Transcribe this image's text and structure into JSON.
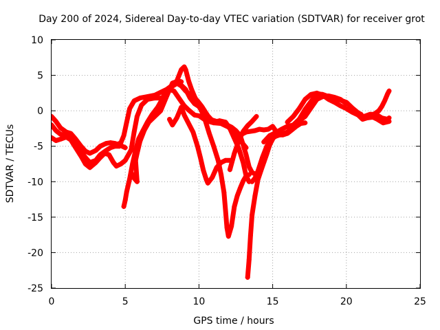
{
  "chart_data": {
    "type": "scatter",
    "title": "Day 200 of 2024, Sidereal Day-to-day VTEC variation (SDTVAR) for receiver grot",
    "xlabel": "GPS time / hours",
    "ylabel": "SDTVAR / TECUs",
    "xlim": [
      0,
      25
    ],
    "ylim": [
      -25,
      10
    ],
    "x_ticks": [
      0,
      5,
      10,
      15,
      20,
      25
    ],
    "x_tick_labels": [
      "0",
      "5",
      "10",
      "15",
      "20",
      "25"
    ],
    "y_ticks": [
      10,
      5,
      0,
      -5,
      -10,
      -15,
      -20,
      -25
    ],
    "y_tick_labels": [
      "10",
      "5",
      "0",
      "-5",
      "-10",
      "-15",
      "-20",
      "-25"
    ],
    "grid": true,
    "marker": "plus",
    "color": "#ff0000",
    "series": [
      {
        "points": [
          [
            0.0,
            -0.8
          ],
          [
            0.3,
            -1.5
          ],
          [
            0.6,
            -2.4
          ],
          [
            1.0,
            -3.0
          ],
          [
            1.3,
            -3.2
          ],
          [
            1.6,
            -3.9
          ],
          [
            2.0,
            -5.0
          ],
          [
            2.3,
            -5.7
          ],
          [
            2.6,
            -6.0
          ],
          [
            3.0,
            -5.6
          ],
          [
            3.3,
            -5.0
          ],
          [
            3.7,
            -4.6
          ],
          [
            4.0,
            -4.5
          ],
          [
            4.3,
            -4.6
          ],
          [
            4.6,
            -4.8
          ],
          [
            5.0,
            -5.2
          ]
        ]
      },
      {
        "points": [
          [
            0.0,
            -2.0
          ],
          [
            0.3,
            -2.8
          ],
          [
            0.6,
            -3.3
          ],
          [
            1.0,
            -3.5
          ],
          [
            1.3,
            -3.6
          ],
          [
            1.6,
            -4.4
          ],
          [
            2.0,
            -5.8
          ],
          [
            2.3,
            -6.6
          ],
          [
            2.6,
            -7.3
          ],
          [
            3.0,
            -7.0
          ],
          [
            3.3,
            -6.2
          ],
          [
            3.7,
            -5.6
          ],
          [
            4.0,
            -5.2
          ],
          [
            4.3,
            -5.0
          ],
          [
            4.6,
            -5.0
          ]
        ]
      },
      {
        "points": [
          [
            0.0,
            -3.8
          ],
          [
            0.3,
            -4.2
          ],
          [
            0.6,
            -4.0
          ],
          [
            1.0,
            -3.7
          ],
          [
            1.3,
            -4.1
          ],
          [
            1.6,
            -5.1
          ],
          [
            2.0,
            -6.4
          ],
          [
            2.3,
            -7.5
          ],
          [
            2.6,
            -8.0
          ],
          [
            3.0,
            -7.3
          ],
          [
            3.3,
            -6.6
          ],
          [
            3.6,
            -6.0
          ],
          [
            3.9,
            -6.2
          ],
          [
            4.2,
            -7.3
          ],
          [
            4.4,
            -7.8
          ],
          [
            4.7,
            -7.5
          ],
          [
            5.0,
            -7.0
          ],
          [
            5.4,
            -5.5
          ],
          [
            5.6,
            -3.0
          ],
          [
            5.8,
            -0.8
          ],
          [
            6.1,
            0.8
          ],
          [
            6.5,
            1.6
          ],
          [
            7.0,
            1.8
          ],
          [
            7.5,
            1.8
          ],
          [
            8.0,
            3.2
          ],
          [
            8.3,
            3.6
          ],
          [
            8.6,
            4.0
          ],
          [
            8.8,
            3.6
          ],
          [
            9.1,
            3.0
          ],
          [
            9.4,
            1.8
          ],
          [
            9.7,
            1.0
          ],
          [
            10.0,
            0.6
          ],
          [
            10.3,
            -0.4
          ],
          [
            10.6,
            -1.1
          ],
          [
            10.9,
            -1.3
          ],
          [
            11.2,
            -1.5
          ],
          [
            11.5,
            -1.7
          ],
          [
            11.9,
            -2.0
          ],
          [
            12.2,
            -2.3
          ],
          [
            12.5,
            -2.8
          ],
          [
            12.8,
            -3.5
          ],
          [
            13.0,
            -4.8
          ],
          [
            13.2,
            -6.2
          ],
          [
            13.4,
            -7.9
          ],
          [
            13.6,
            -8.7
          ],
          [
            13.9,
            -9.0
          ]
        ]
      },
      {
        "points": [
          [
            4.4,
            -4.8
          ],
          [
            4.7,
            -4.5
          ],
          [
            4.9,
            -3.5
          ],
          [
            5.1,
            -1.6
          ],
          [
            5.3,
            0.3
          ],
          [
            5.6,
            1.4
          ],
          [
            6.0,
            1.8
          ],
          [
            6.5,
            2.0
          ],
          [
            7.0,
            2.2
          ],
          [
            7.4,
            2.6
          ],
          [
            7.8,
            3.0
          ],
          [
            8.2,
            3.6
          ],
          [
            8.5,
            3.9
          ],
          [
            8.8,
            3.5
          ],
          [
            9.1,
            2.8
          ],
          [
            9.5,
            2.1
          ],
          [
            9.9,
            1.4
          ],
          [
            10.2,
            0.6
          ],
          [
            10.6,
            -0.7
          ],
          [
            11.0,
            -1.6
          ],
          [
            11.4,
            -1.4
          ],
          [
            11.8,
            -1.6
          ],
          [
            12.1,
            -2.5
          ],
          [
            12.4,
            -3.9
          ],
          [
            12.7,
            -5.3
          ],
          [
            13.0,
            -7.3
          ],
          [
            13.2,
            -9.2
          ],
          [
            13.4,
            -10.0
          ]
        ]
      },
      {
        "points": [
          [
            4.9,
            -13.5
          ],
          [
            5.0,
            -12.6
          ],
          [
            5.1,
            -11.4
          ],
          [
            5.3,
            -9.6
          ],
          [
            5.5,
            -7.4
          ],
          [
            5.7,
            -5.6
          ],
          [
            5.9,
            -4.0
          ],
          [
            6.2,
            -2.8
          ],
          [
            6.5,
            -1.6
          ],
          [
            6.8,
            -0.6
          ],
          [
            7.2,
            0.5
          ],
          [
            7.5,
            1.6
          ],
          [
            7.8,
            2.8
          ],
          [
            8.0,
            3.0
          ],
          [
            8.3,
            2.8
          ],
          [
            8.7,
            1.6
          ],
          [
            9.0,
            0.7
          ],
          [
            9.3,
            0.1
          ],
          [
            9.7,
            -0.6
          ],
          [
            10.0,
            -0.7
          ],
          [
            10.5,
            -1.4
          ],
          [
            11.0,
            -1.7
          ],
          [
            11.5,
            -1.8
          ],
          [
            12.0,
            -2.3
          ],
          [
            12.4,
            -3.1
          ],
          [
            12.8,
            -4.2
          ],
          [
            13.2,
            -5.2
          ]
        ]
      },
      {
        "points": [
          [
            5.4,
            -8.7
          ],
          [
            5.6,
            -9.5
          ],
          [
            5.8,
            -10.0
          ],
          [
            5.7,
            -7.0
          ],
          [
            5.8,
            -6.0
          ],
          [
            6.0,
            -4.3
          ],
          [
            6.3,
            -2.7
          ],
          [
            6.6,
            -1.6
          ],
          [
            7.0,
            -0.8
          ],
          [
            7.4,
            0.0
          ],
          [
            7.8,
            2.0
          ],
          [
            8.2,
            3.9
          ],
          [
            8.6,
            4.2
          ],
          [
            8.8,
            4.1
          ]
        ]
      },
      {
        "points": [
          [
            8.0,
            -1.2
          ],
          [
            8.2,
            -2.0
          ],
          [
            8.5,
            -1.0
          ],
          [
            8.8,
            0.5
          ],
          [
            9.0,
            -0.6
          ],
          [
            9.3,
            -1.8
          ],
          [
            9.6,
            -3.0
          ],
          [
            9.9,
            -5.0
          ],
          [
            10.1,
            -6.6
          ],
          [
            10.3,
            -8.4
          ],
          [
            10.5,
            -9.7
          ],
          [
            10.6,
            -10.2
          ],
          [
            10.9,
            -9.4
          ],
          [
            11.2,
            -8.0
          ],
          [
            11.5,
            -7.3
          ],
          [
            11.8,
            -7.0
          ],
          [
            12.1,
            -7.0
          ]
        ]
      },
      {
        "points": [
          [
            8.5,
            4.2
          ],
          [
            8.8,
            5.8
          ],
          [
            9.0,
            6.2
          ],
          [
            9.1,
            5.8
          ],
          [
            9.3,
            4.2
          ],
          [
            9.5,
            3.0
          ],
          [
            9.7,
            2.0
          ],
          [
            9.9,
            1.2
          ],
          [
            10.1,
            0.4
          ],
          [
            10.4,
            -1.2
          ],
          [
            10.7,
            -3.2
          ],
          [
            11.0,
            -5.0
          ],
          [
            11.3,
            -7.0
          ],
          [
            11.5,
            -9.0
          ],
          [
            11.7,
            -11.5
          ],
          [
            11.8,
            -14.0
          ],
          [
            11.9,
            -16.5
          ],
          [
            12.0,
            -17.7
          ],
          [
            12.2,
            -16.3
          ],
          [
            12.4,
            -13.5
          ],
          [
            12.6,
            -12.0
          ],
          [
            12.8,
            -10.9
          ],
          [
            13.0,
            -9.9
          ],
          [
            13.2,
            -9.2
          ],
          [
            13.4,
            -9.0
          ]
        ]
      },
      {
        "points": [
          [
            13.3,
            -23.5
          ],
          [
            13.4,
            -21.0
          ],
          [
            13.5,
            -17.6
          ],
          [
            13.6,
            -14.7
          ],
          [
            13.8,
            -12.0
          ],
          [
            14.0,
            -9.7
          ],
          [
            14.2,
            -8.5
          ],
          [
            14.4,
            -7.3
          ],
          [
            14.6,
            -6.1
          ],
          [
            14.8,
            -4.8
          ],
          [
            15.1,
            -3.6
          ],
          [
            15.4,
            -3.4
          ],
          [
            15.7,
            -3.4
          ],
          [
            16.0,
            -3.2
          ],
          [
            16.3,
            -2.7
          ],
          [
            16.6,
            -2.2
          ],
          [
            16.9,
            -1.8
          ],
          [
            17.2,
            -1.7
          ]
        ]
      },
      {
        "points": [
          [
            12.1,
            -8.3
          ],
          [
            12.4,
            -6.0
          ],
          [
            12.7,
            -4.2
          ],
          [
            13.0,
            -2.9
          ],
          [
            13.3,
            -2.1
          ],
          [
            13.6,
            -1.5
          ],
          [
            13.9,
            -0.8
          ]
        ]
      },
      {
        "points": [
          [
            12.6,
            -4.5
          ],
          [
            12.9,
            -3.3
          ],
          [
            13.2,
            -3.0
          ],
          [
            13.5,
            -2.9
          ],
          [
            13.8,
            -2.8
          ],
          [
            14.1,
            -2.6
          ],
          [
            14.4,
            -2.7
          ],
          [
            14.7,
            -2.6
          ],
          [
            15.0,
            -2.2
          ],
          [
            15.3,
            -3.1
          ]
        ]
      },
      {
        "points": [
          [
            13.6,
            -10.0
          ],
          [
            13.8,
            -9.5
          ],
          [
            14.0,
            -8.5
          ],
          [
            14.3,
            -6.6
          ],
          [
            14.6,
            -5.0
          ],
          [
            14.9,
            -4.0
          ],
          [
            15.2,
            -3.6
          ],
          [
            15.6,
            -3.3
          ],
          [
            16.0,
            -3.0
          ],
          [
            16.4,
            -2.3
          ],
          [
            16.8,
            -1.4
          ],
          [
            17.2,
            -0.8
          ],
          [
            17.6,
            0.4
          ],
          [
            18.0,
            1.6
          ],
          [
            18.4,
            2.0
          ],
          [
            18.8,
            2.1
          ],
          [
            19.2,
            1.9
          ],
          [
            19.6,
            1.6
          ],
          [
            20.0,
            1.0
          ]
        ]
      },
      {
        "points": [
          [
            14.4,
            -4.4
          ],
          [
            14.8,
            -3.5
          ],
          [
            15.2,
            -3.1
          ],
          [
            15.6,
            -2.6
          ],
          [
            16.0,
            -2.2
          ],
          [
            16.4,
            -2.0
          ],
          [
            16.8,
            -1.2
          ],
          [
            17.2,
            0.2
          ],
          [
            17.6,
            1.3
          ],
          [
            18.0,
            2.4
          ],
          [
            18.4,
            2.3
          ],
          [
            18.8,
            2.0
          ],
          [
            19.2,
            1.8
          ],
          [
            19.6,
            1.5
          ],
          [
            20.0,
            1.2
          ],
          [
            20.4,
            0.4
          ],
          [
            20.8,
            -0.3
          ],
          [
            21.0,
            -0.5
          ]
        ]
      },
      {
        "points": [
          [
            16.0,
            -1.6
          ],
          [
            16.4,
            -0.8
          ],
          [
            16.8,
            0.3
          ],
          [
            17.2,
            1.6
          ],
          [
            17.6,
            2.3
          ],
          [
            18.0,
            2.5
          ],
          [
            18.4,
            2.2
          ],
          [
            18.8,
            1.6
          ],
          [
            19.2,
            1.2
          ],
          [
            19.6,
            0.7
          ],
          [
            20.0,
            0.3
          ],
          [
            20.4,
            -0.2
          ],
          [
            20.8,
            -0.6
          ],
          [
            21.1,
            -1.2
          ],
          [
            21.4,
            -1.0
          ],
          [
            21.8,
            -0.9
          ],
          [
            22.1,
            -1.2
          ],
          [
            22.5,
            -1.7
          ],
          [
            22.9,
            -1.5
          ]
        ]
      },
      {
        "points": [
          [
            21.8,
            -0.6
          ],
          [
            22.0,
            -0.3
          ],
          [
            22.2,
            0.0
          ],
          [
            22.4,
            0.6
          ],
          [
            22.6,
            1.4
          ],
          [
            22.8,
            2.4
          ],
          [
            22.9,
            2.8
          ]
        ]
      },
      {
        "points": [
          [
            20.8,
            -0.6
          ],
          [
            21.2,
            -0.8
          ],
          [
            21.6,
            -0.5
          ],
          [
            22.0,
            -0.5
          ],
          [
            22.4,
            -1.0
          ],
          [
            22.8,
            -1.2
          ],
          [
            22.9,
            -1.0
          ]
        ]
      }
    ]
  }
}
